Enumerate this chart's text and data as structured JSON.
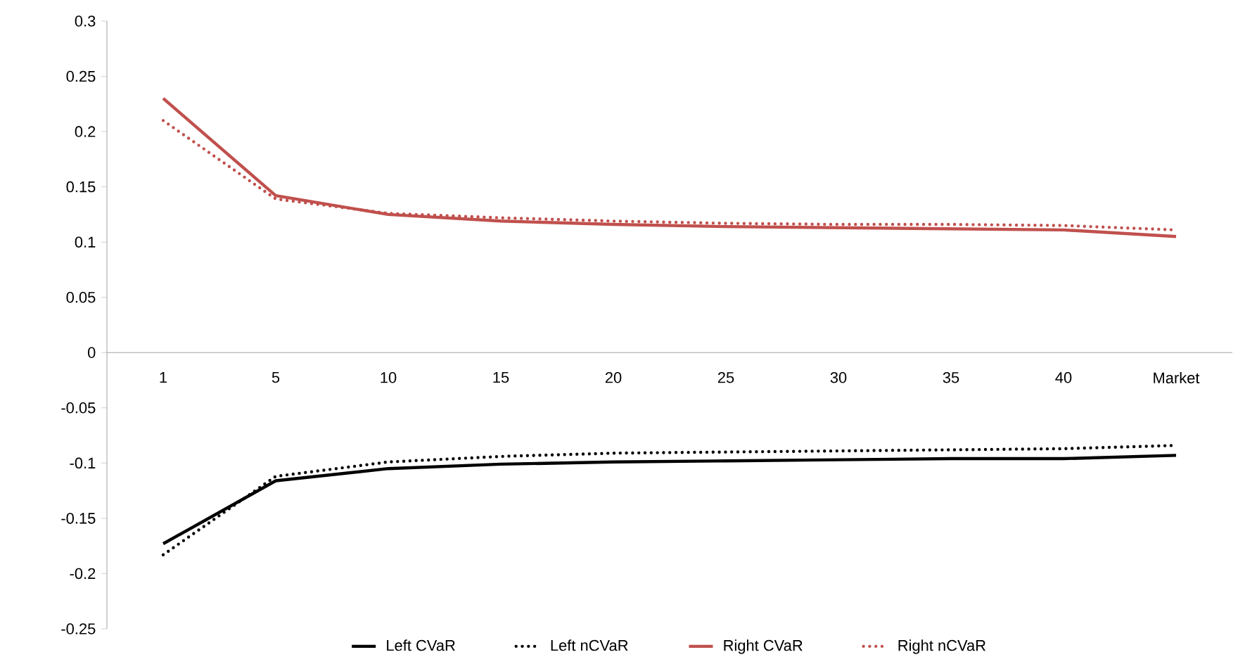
{
  "chart_data": {
    "type": "line",
    "categories": [
      "1",
      "5",
      "10",
      "15",
      "20",
      "25",
      "30",
      "35",
      "40",
      "Market"
    ],
    "series": [
      {
        "name": "Left CVaR",
        "color": "#000000",
        "line_style": "solid",
        "values": [
          -0.173,
          -0.116,
          -0.105,
          -0.101,
          -0.099,
          -0.098,
          -0.097,
          -0.096,
          -0.096,
          -0.093
        ]
      },
      {
        "name": "Left nCVaR",
        "color": "#000000",
        "line_style": "dotted",
        "values": [
          -0.183,
          -0.112,
          -0.099,
          -0.094,
          -0.091,
          -0.09,
          -0.089,
          -0.088,
          -0.087,
          -0.084
        ]
      },
      {
        "name": "Right CVaR",
        "color": "#c0504d",
        "line_style": "solid",
        "values": [
          0.23,
          0.142,
          0.125,
          0.119,
          0.116,
          0.114,
          0.113,
          0.112,
          0.111,
          0.105
        ]
      },
      {
        "name": "Right nCVaR",
        "color": "#c0504d",
        "line_style": "dotted",
        "values": [
          0.21,
          0.139,
          0.126,
          0.122,
          0.119,
          0.117,
          0.116,
          0.116,
          0.115,
          0.111
        ]
      }
    ],
    "ylim": [
      -0.25,
      0.3
    ],
    "yticks": [
      -0.25,
      -0.2,
      -0.15,
      -0.1,
      -0.05,
      0,
      0.05,
      0.1,
      0.15,
      0.2,
      0.25,
      0.3
    ],
    "grid": false,
    "legend": "bottom",
    "marker": "none"
  }
}
